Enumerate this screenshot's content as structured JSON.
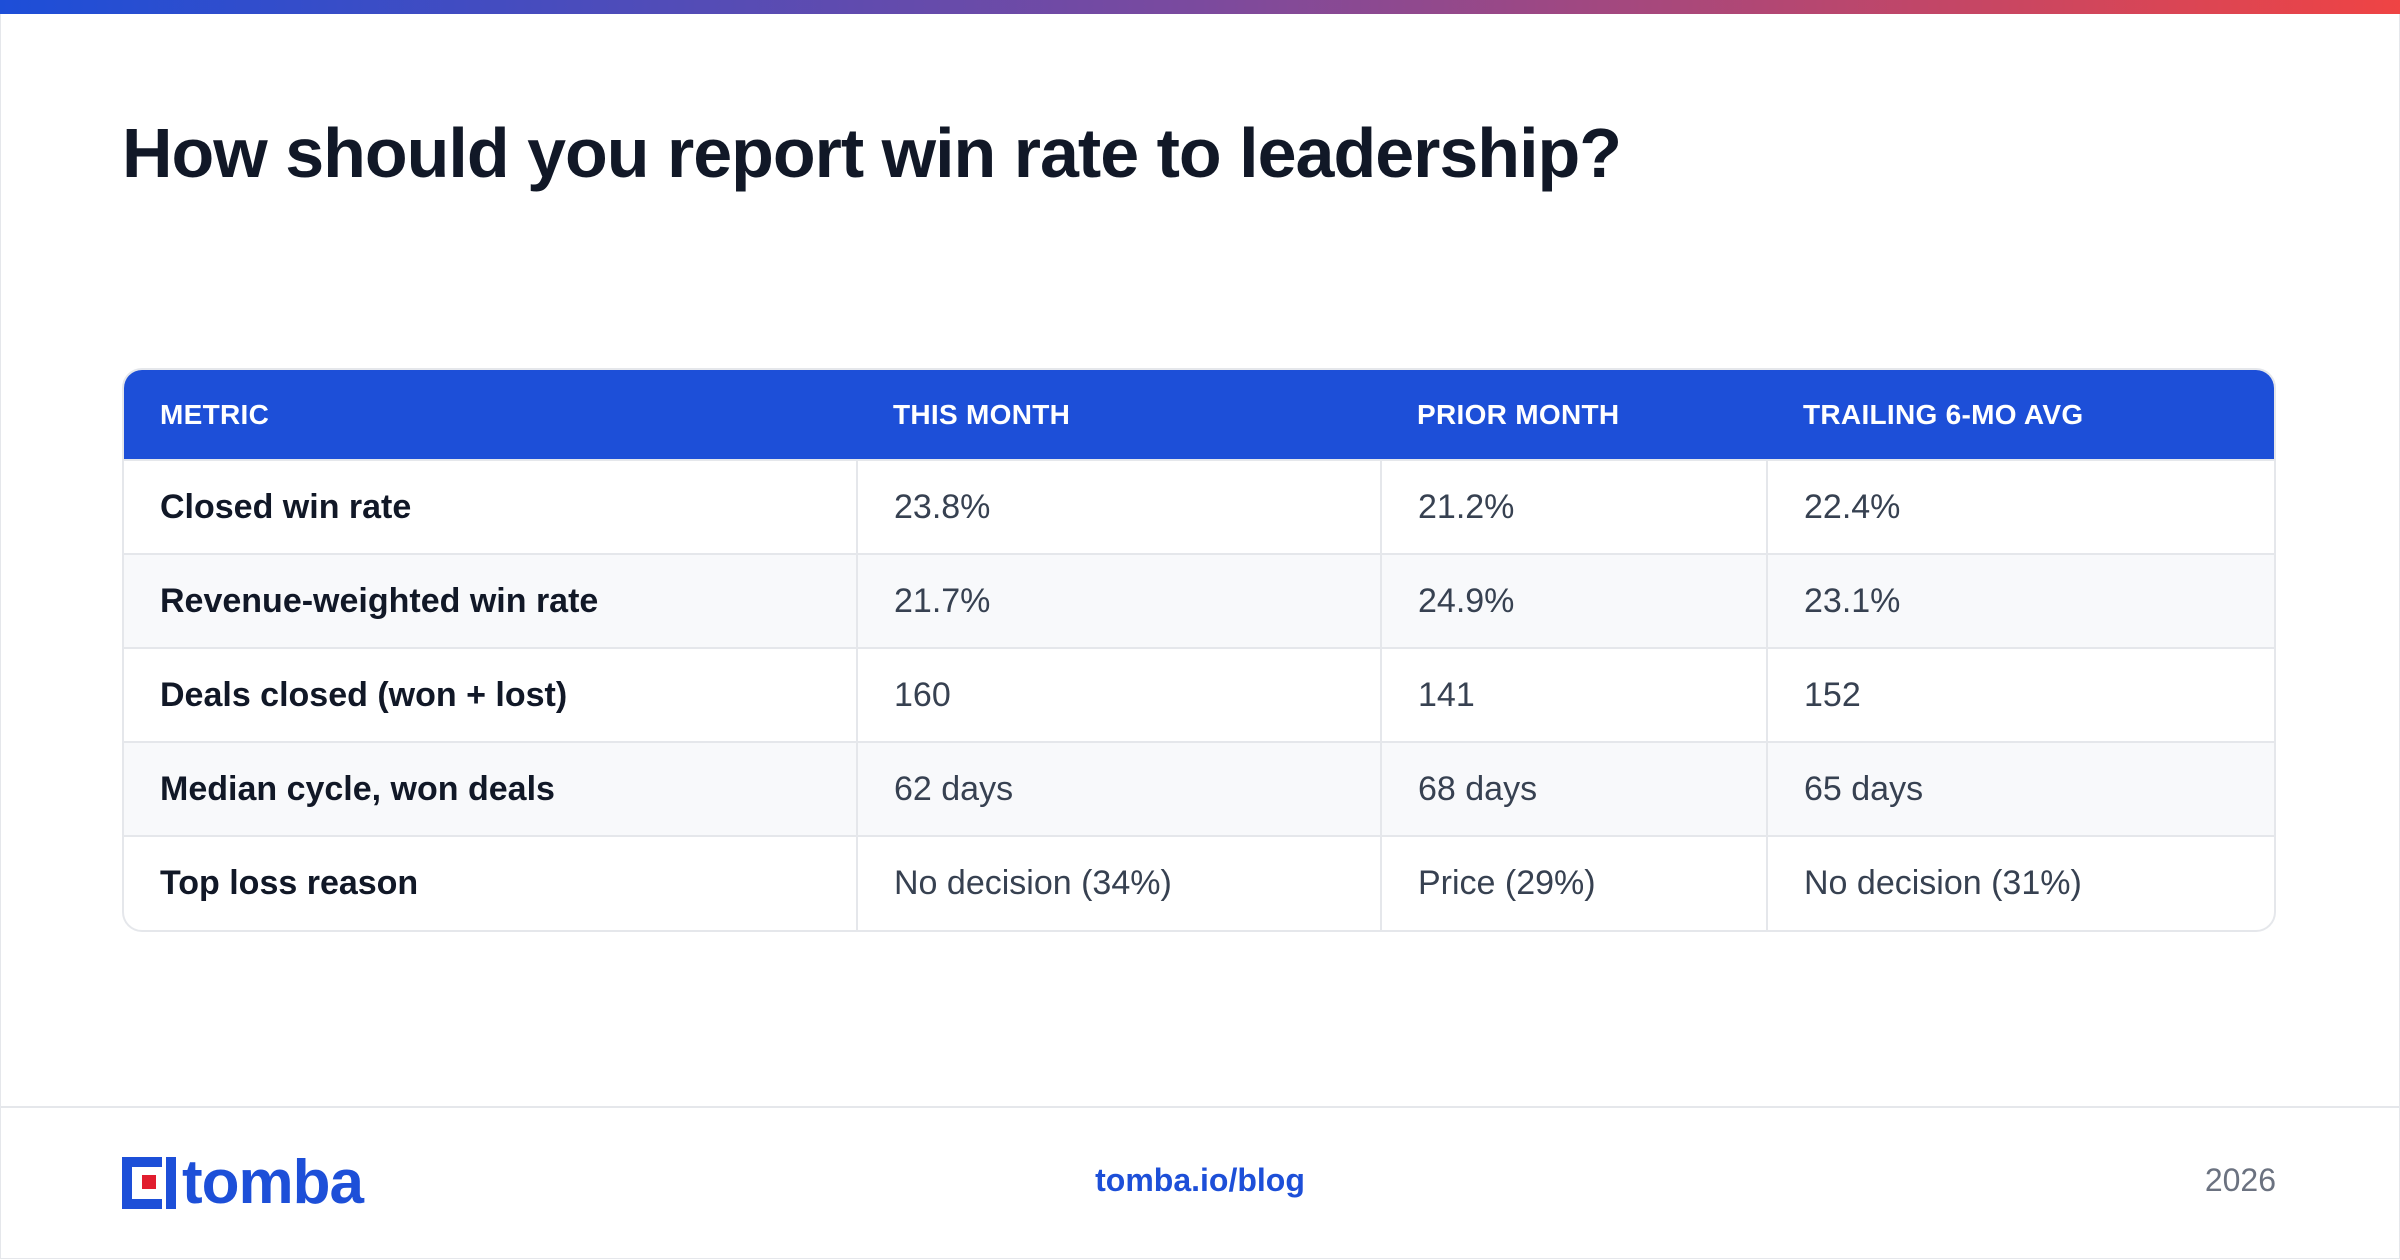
{
  "title": "How should you report win rate to leadership?",
  "table": {
    "headers": [
      "METRIC",
      "THIS MONTH",
      "PRIOR MONTH",
      "TRAILING 6-MO AVG"
    ],
    "rows": [
      [
        "Closed win rate",
        "23.8%",
        "21.2%",
        "22.4%"
      ],
      [
        "Revenue-weighted win rate",
        "21.7%",
        "24.9%",
        "23.1%"
      ],
      [
        "Deals closed (won + lost)",
        "160",
        "141",
        "152"
      ],
      [
        "Median cycle, won deals",
        "62 days",
        "68 days",
        "65 days"
      ],
      [
        "Top loss reason",
        "No decision (34%)",
        "Price (29%)",
        "No decision (31%)"
      ]
    ]
  },
  "footer": {
    "logo_text": "tomba",
    "url": "tomba.io/blog",
    "year": "2026"
  },
  "colors": {
    "accent": "#1d4fd8",
    "logo_red": "#e11d2e"
  }
}
